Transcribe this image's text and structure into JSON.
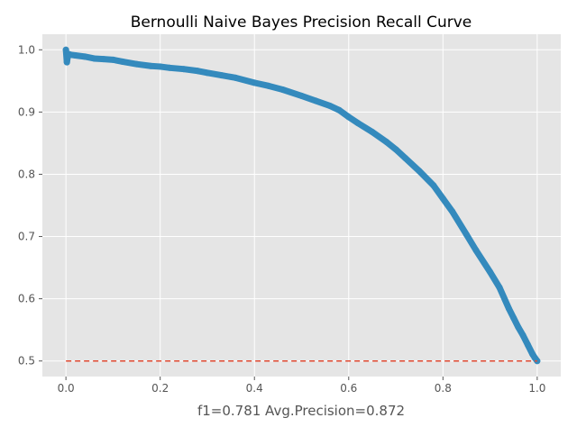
{
  "chart_data": {
    "type": "line",
    "title": "Bernoulli Naive Bayes Precision Recall Curve",
    "xlabel": "f1=0.781  Avg.Precision=0.872",
    "ylabel": "",
    "xlim": [
      -0.05,
      1.05
    ],
    "ylim": [
      0.475,
      1.025
    ],
    "x_ticks": [
      0.0,
      0.2,
      0.4,
      0.6,
      0.8,
      1.0
    ],
    "x_tick_labels": [
      "0.0",
      "0.2",
      "0.4",
      "0.6",
      "0.8",
      "1.0"
    ],
    "y_ticks": [
      0.5,
      0.6,
      0.7,
      0.8,
      0.9,
      1.0
    ],
    "y_tick_labels": [
      "0.5",
      "0.6",
      "0.7",
      "0.8",
      "0.9",
      "1.0"
    ],
    "grid": true,
    "legend": "none",
    "background_color": "#e5e5e5",
    "series": [
      {
        "style": "solid-with-markers",
        "color": "#348abd",
        "x": [
          0.0,
          0.002,
          0.004,
          0.006,
          0.01,
          0.02,
          0.04,
          0.06,
          0.08,
          0.1,
          0.12,
          0.15,
          0.18,
          0.2,
          0.22,
          0.25,
          0.28,
          0.3,
          0.33,
          0.36,
          0.4,
          0.43,
          0.46,
          0.5,
          0.53,
          0.56,
          0.58,
          0.6,
          0.62,
          0.65,
          0.68,
          0.7,
          0.72,
          0.75,
          0.78,
          0.8,
          0.82,
          0.85,
          0.87,
          0.9,
          0.92,
          0.94,
          0.95,
          0.96,
          0.97,
          0.98,
          0.99,
          0.995,
          1.0
        ],
        "y": [
          1.0,
          0.98,
          0.99,
          0.993,
          0.992,
          0.991,
          0.989,
          0.986,
          0.985,
          0.984,
          0.981,
          0.977,
          0.974,
          0.973,
          0.971,
          0.969,
          0.966,
          0.963,
          0.959,
          0.955,
          0.947,
          0.942,
          0.936,
          0.926,
          0.918,
          0.91,
          0.903,
          0.892,
          0.882,
          0.868,
          0.852,
          0.84,
          0.826,
          0.805,
          0.782,
          0.761,
          0.74,
          0.703,
          0.678,
          0.643,
          0.618,
          0.584,
          0.569,
          0.554,
          0.541,
          0.526,
          0.511,
          0.505,
          0.5
        ]
      },
      {
        "style": "dashed",
        "color": "#e24a33",
        "x": [
          0.0,
          1.0
        ],
        "y": [
          0.5,
          0.5
        ]
      }
    ]
  }
}
